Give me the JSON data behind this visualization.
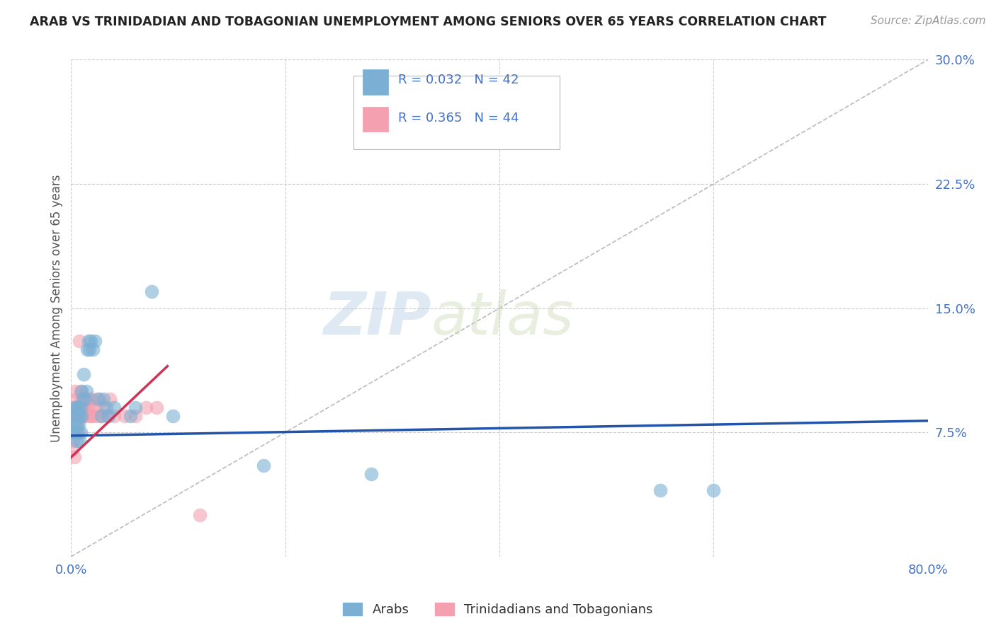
{
  "title": "ARAB VS TRINIDADIAN AND TOBAGONIAN UNEMPLOYMENT AMONG SENIORS OVER 65 YEARS CORRELATION CHART",
  "source": "Source: ZipAtlas.com",
  "ylabel": "Unemployment Among Seniors over 65 years",
  "xmin": 0.0,
  "xmax": 0.8,
  "ymin": 0.0,
  "ymax": 0.3,
  "ytick_vals": [
    0.075,
    0.15,
    0.225,
    0.3
  ],
  "ytick_labels": [
    "7.5%",
    "15.0%",
    "22.5%",
    "30.0%"
  ],
  "xtick_vals": [
    0.0,
    0.8
  ],
  "xtick_labels": [
    "0.0%",
    "80.0%"
  ],
  "arab_color": "#7bafd4",
  "tnt_color": "#f4a0b0",
  "arab_line_color": "#2255aa",
  "tnt_line_color": "#cc3355",
  "diagonal_color": "#bbbbbb",
  "grid_color": "#cccccc",
  "background_color": "#ffffff",
  "title_color": "#222222",
  "source_color": "#999999",
  "tick_color": "#4472c4",
  "ylabel_color": "#555555",
  "watermark_zip": "ZIP",
  "watermark_atlas": "atlas",
  "legend_R1": "0.032",
  "legend_N1": "42",
  "legend_R2": "0.365",
  "legend_N2": "44",
  "legend_label1": "Arabs",
  "legend_label2": "Trinidadians and Tobagonians",
  "arab_x": [
    0.002,
    0.003,
    0.003,
    0.004,
    0.004,
    0.005,
    0.005,
    0.005,
    0.006,
    0.006,
    0.007,
    0.007,
    0.008,
    0.008,
    0.009,
    0.009,
    0.01,
    0.01,
    0.011,
    0.012,
    0.013,
    0.014,
    0.015,
    0.016,
    0.017,
    0.018,
    0.02,
    0.022,
    0.025,
    0.028,
    0.03,
    0.033,
    0.035,
    0.04,
    0.055,
    0.06,
    0.075,
    0.095,
    0.18,
    0.28,
    0.55,
    0.6
  ],
  "arab_y": [
    0.075,
    0.08,
    0.09,
    0.075,
    0.085,
    0.07,
    0.08,
    0.09,
    0.075,
    0.085,
    0.08,
    0.09,
    0.07,
    0.085,
    0.075,
    0.09,
    0.085,
    0.1,
    0.095,
    0.11,
    0.095,
    0.1,
    0.125,
    0.13,
    0.125,
    0.13,
    0.125,
    0.13,
    0.095,
    0.085,
    0.095,
    0.09,
    0.085,
    0.09,
    0.085,
    0.09,
    0.16,
    0.085,
    0.055,
    0.05,
    0.04,
    0.04
  ],
  "tnt_x": [
    0.0,
    0.001,
    0.001,
    0.002,
    0.002,
    0.003,
    0.003,
    0.004,
    0.004,
    0.005,
    0.005,
    0.006,
    0.006,
    0.007,
    0.007,
    0.008,
    0.008,
    0.009,
    0.009,
    0.01,
    0.01,
    0.011,
    0.012,
    0.013,
    0.014,
    0.015,
    0.016,
    0.017,
    0.018,
    0.019,
    0.02,
    0.022,
    0.024,
    0.026,
    0.028,
    0.03,
    0.033,
    0.036,
    0.04,
    0.05,
    0.06,
    0.07,
    0.08,
    0.12
  ],
  "tnt_y": [
    0.075,
    0.065,
    0.08,
    0.07,
    0.085,
    0.06,
    0.09,
    0.075,
    0.1,
    0.085,
    0.095,
    0.08,
    0.09,
    0.085,
    0.075,
    0.09,
    0.13,
    0.085,
    0.1,
    0.085,
    0.095,
    0.09,
    0.085,
    0.095,
    0.09,
    0.085,
    0.095,
    0.09,
    0.085,
    0.095,
    0.085,
    0.09,
    0.085,
    0.095,
    0.085,
    0.09,
    0.085,
    0.095,
    0.085,
    0.085,
    0.085,
    0.09,
    0.09,
    0.025
  ],
  "arab_line_x": [
    0.0,
    0.8
  ],
  "arab_line_y": [
    0.073,
    0.082
  ],
  "tnt_line_x": [
    0.0,
    0.09
  ],
  "tnt_line_y": [
    0.06,
    0.115
  ]
}
